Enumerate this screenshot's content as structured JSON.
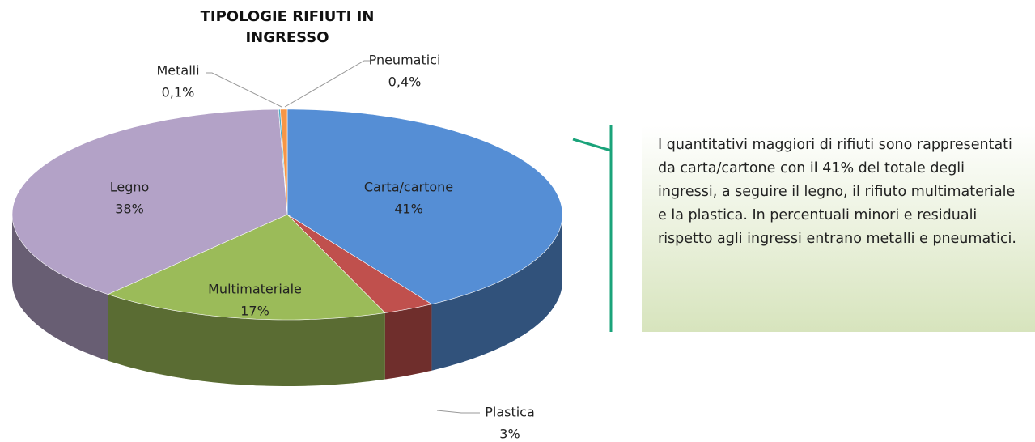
{
  "chart_data": {
    "type": "pie",
    "title": "TIPOLOGIE RIFIUTI IN INGRESSO",
    "categories": [
      "Carta/cartone",
      "Plastica",
      "Multimateriale",
      "Legno",
      "Metalli",
      "Pneumatici"
    ],
    "values": [
      41,
      3,
      17,
      38,
      0.1,
      0.4
    ],
    "value_labels": [
      "41%",
      "3%",
      "17%",
      "38%",
      "0,1%",
      "0,4%"
    ],
    "colors": [
      "#558ed5",
      "#c0504d",
      "#9bbb59",
      "#b3a2c7",
      "#4bacc6",
      "#f79646"
    ]
  },
  "text_box": "I quantitativi maggiori di rifiuti sono rappresentati da carta/cartone con il 41% del totale degli ingressi, a seguire il legno, il rifiuto multimateriale e la plastica. In percentuali minori e residuali rispetto agli ingressi entrano metalli e pneumatici."
}
